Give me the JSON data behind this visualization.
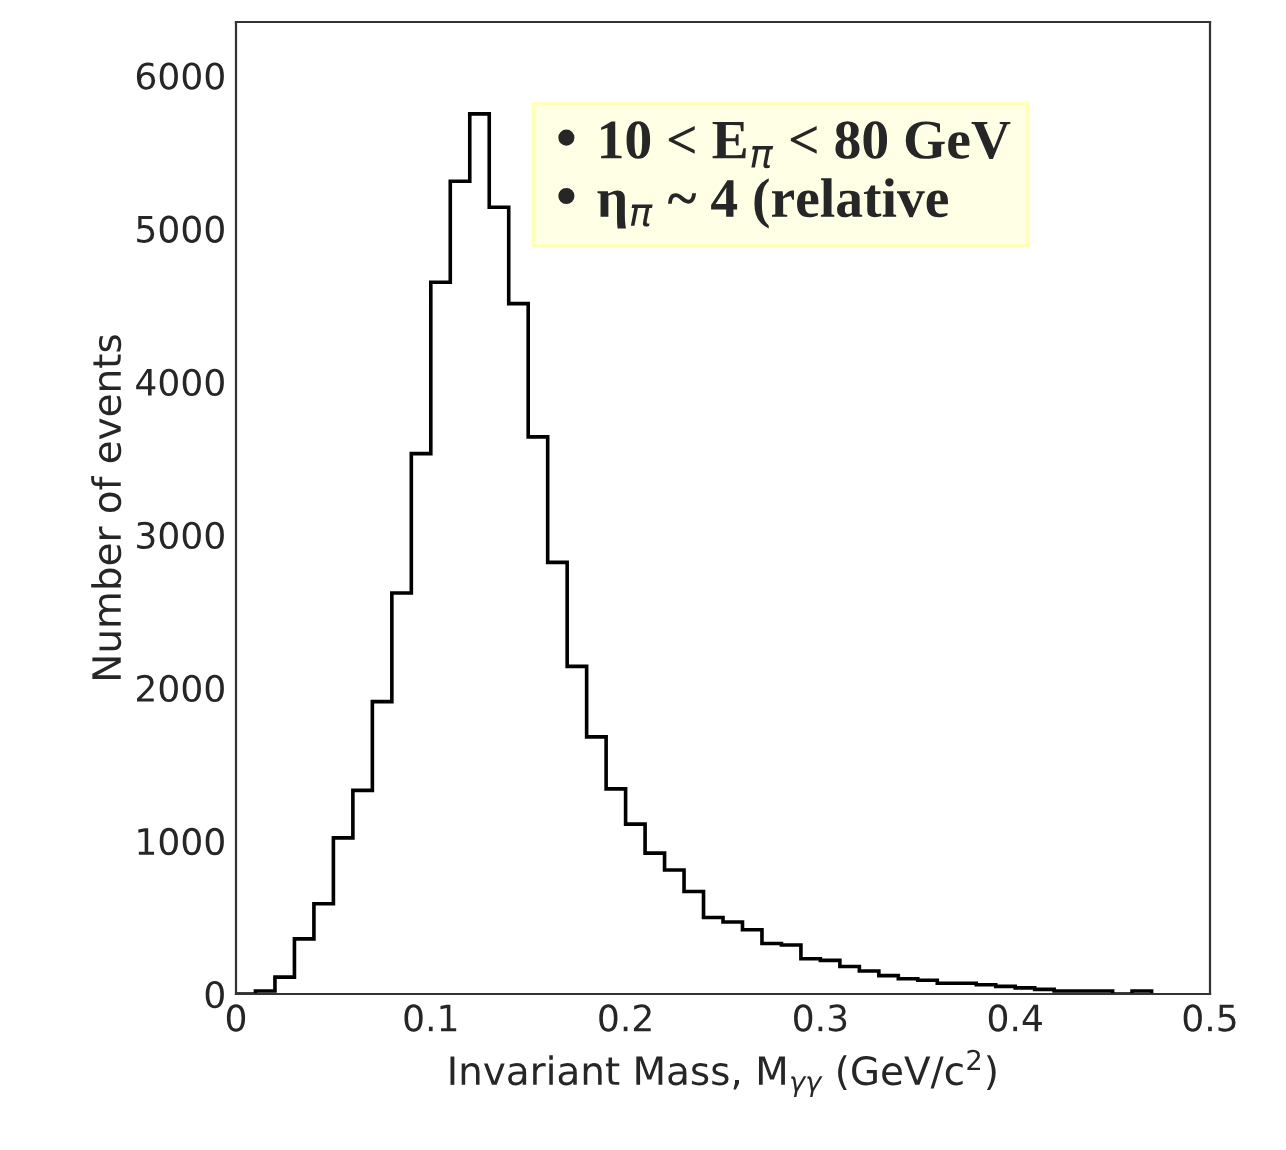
{
  "chart_data": {
    "type": "histogram",
    "xlabel": "Invariant Mass, M$_{γγ}$ (GeV/c$^{2}$)",
    "ylabel": "Number of events",
    "bins": [
      0,
      0.01,
      0.02,
      0.03,
      0.04,
      0.05,
      0.06,
      0.07,
      0.08,
      0.09,
      0.1,
      0.11,
      0.12,
      0.13,
      0.14,
      0.15,
      0.16,
      0.17,
      0.18,
      0.19,
      0.2,
      0.21,
      0.22,
      0.23,
      0.24,
      0.25,
      0.26,
      0.27,
      0.28,
      0.29,
      0.3,
      0.31,
      0.32,
      0.33,
      0.34,
      0.35,
      0.36,
      0.37,
      0.38,
      0.39,
      0.4,
      0.41,
      0.42,
      0.43,
      0.44,
      0.45,
      0.46,
      0.47
    ],
    "values": [
      0,
      20,
      110,
      360,
      590,
      1020,
      1330,
      1910,
      2620,
      3530,
      4650,
      5310,
      5750,
      5140,
      4510,
      3640,
      2820,
      2140,
      1680,
      1340,
      1110,
      920,
      810,
      670,
      500,
      470,
      420,
      330,
      320,
      230,
      220,
      180,
      150,
      120,
      100,
      90,
      70,
      70,
      60,
      50,
      40,
      30,
      20,
      20,
      20,
      0,
      20
    ],
    "color": "#000000",
    "xlim": [
      0,
      0.5
    ],
    "xticks": [
      0,
      0.1,
      0.2,
      0.3,
      0.4,
      0.5
    ],
    "ylim": [
      0,
      6350
    ],
    "yticks": [
      0,
      1000,
      2000,
      3000,
      4000,
      5000,
      6000
    ],
    "grid": false,
    "legend": false,
    "annotations": [
      "• 10 < E$_{π}$ < 80 GeV",
      "• η$_{π}$ ~ 4 (relative"
    ]
  }
}
